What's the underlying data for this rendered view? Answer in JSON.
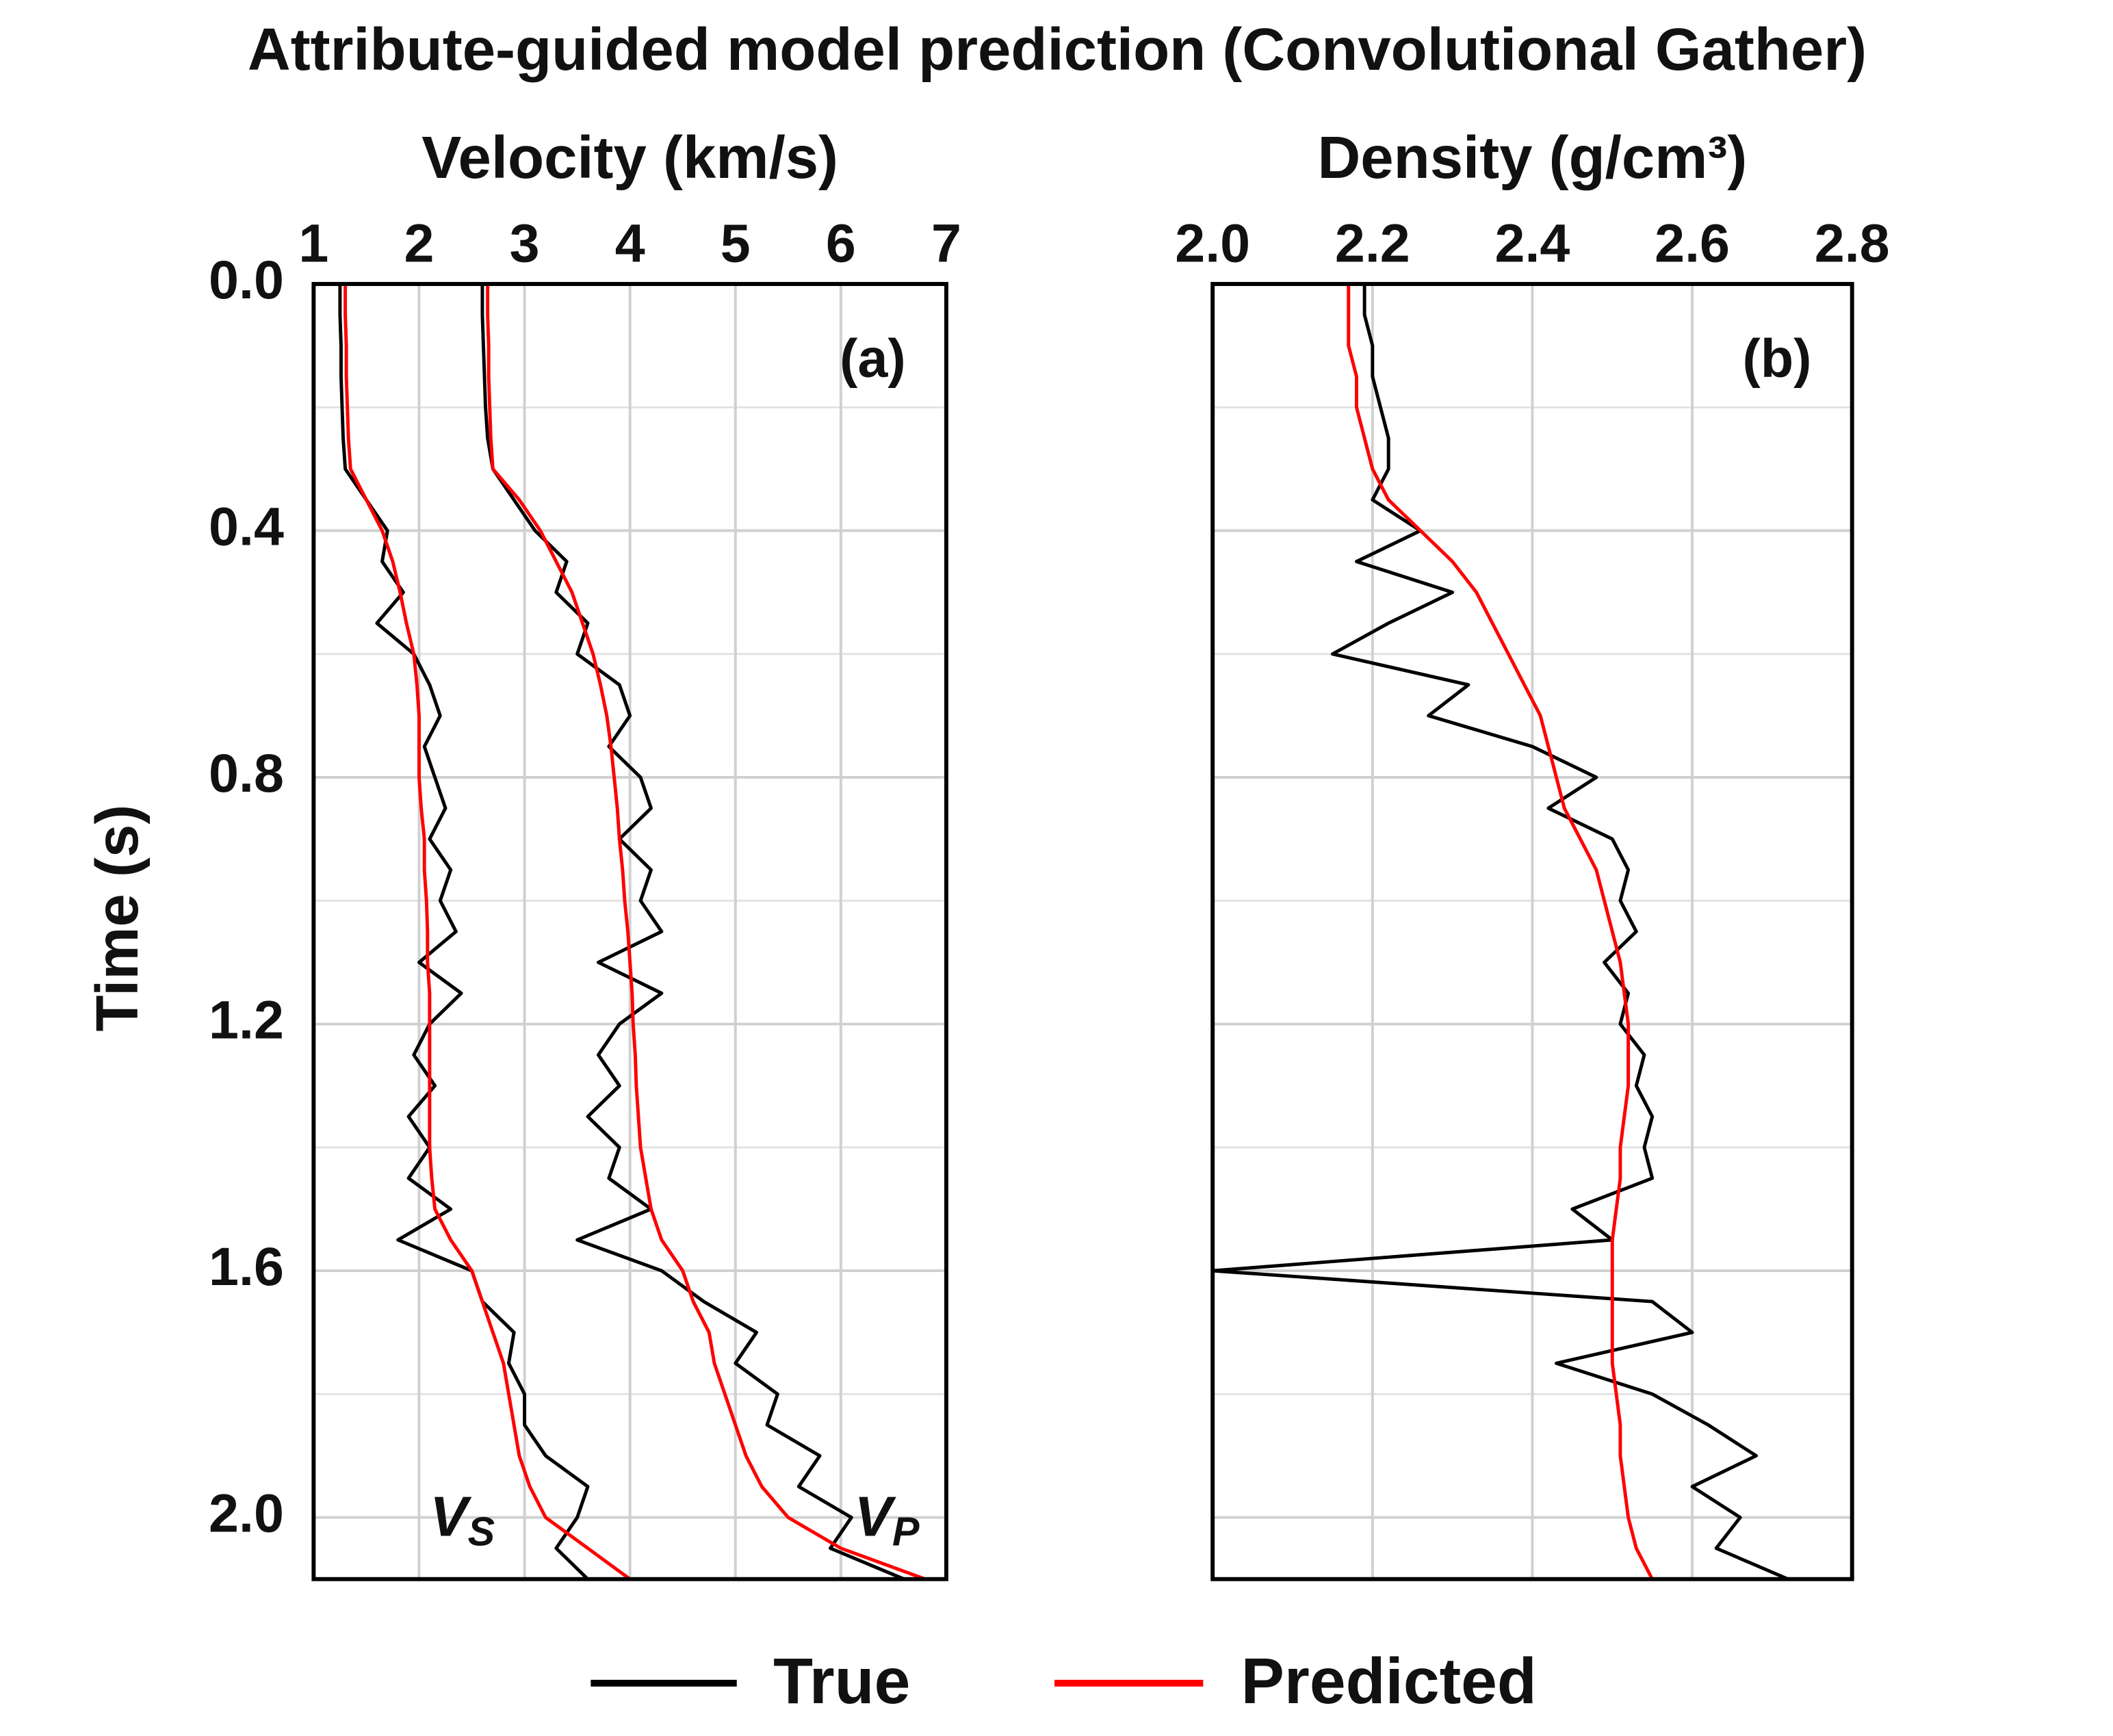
{
  "title": "Attribute-guided model prediction (Convolutional Gather)",
  "chart_data": [
    {
      "type": "line",
      "orientation": "vertical",
      "panel_label": "(a)",
      "xlabel": "Time (s)",
      "ylabel": "Velocity (km/s)",
      "x": [
        0,
        0.05,
        0.1,
        0.15,
        0.2,
        0.25,
        0.3,
        0.35,
        0.4,
        0.45,
        0.5,
        0.55,
        0.6,
        0.65,
        0.7,
        0.75,
        0.8,
        0.85,
        0.9,
        0.95,
        1.0,
        1.05,
        1.1,
        1.15,
        1.2,
        1.25,
        1.3,
        1.35,
        1.4,
        1.45,
        1.5,
        1.55,
        1.6,
        1.65,
        1.7,
        1.75,
        1.8,
        1.85,
        1.9,
        1.95,
        2.0,
        2.05,
        2.1
      ],
      "xlim": [
        0,
        2.1
      ],
      "xticks": [
        {
          "value": 0,
          "label": "0.0"
        },
        0.4,
        0.8,
        1.2,
        1.6,
        {
          "value": 2,
          "label": "2.0"
        }
      ],
      "xminor": [
        0.2,
        0.6,
        1.0,
        1.4,
        1.8
      ],
      "show_xtick_labels": true,
      "ylim": [
        1,
        7
      ],
      "yticks": [
        1,
        2,
        3,
        4,
        5,
        6,
        7
      ],
      "grid": true,
      "annotations": [
        {
          "text": "V",
          "sub": "S"
        },
        {
          "text": "V",
          "sub": "P"
        }
      ],
      "series": [
        {
          "name": "True",
          "color": "#000000",
          "values": [
            1.25,
            1.25,
            1.26,
            1.26,
            1.27,
            1.28,
            1.3,
            1.5,
            1.7,
            1.65,
            1.85,
            1.6,
            1.95,
            2.1,
            2.2,
            2.05,
            2.15,
            2.25,
            2.1,
            2.3,
            2.2,
            2.35,
            2.0,
            2.4,
            2.1,
            1.95,
            2.15,
            1.9,
            2.1,
            1.9,
            2.3,
            1.8,
            2.5,
            2.6,
            2.9,
            2.85,
            3.0,
            3.0,
            3.2,
            3.6,
            3.5,
            3.3,
            3.6
          ]
        },
        {
          "name": "Predicted",
          "color": "#ff0000",
          "values": [
            1.3,
            1.3,
            1.31,
            1.31,
            1.32,
            1.33,
            1.35,
            1.5,
            1.65,
            1.75,
            1.82,
            1.88,
            1.95,
            1.98,
            2.0,
            2.0,
            2.0,
            2.02,
            2.05,
            2.05,
            2.07,
            2.08,
            2.08,
            2.1,
            2.1,
            2.1,
            2.1,
            2.1,
            2.1,
            2.12,
            2.15,
            2.3,
            2.5,
            2.6,
            2.7,
            2.8,
            2.85,
            2.9,
            2.95,
            3.05,
            3.2,
            3.6,
            4.0
          ]
        },
        {
          "name": "True",
          "color": "#000000",
          "values": [
            2.6,
            2.6,
            2.61,
            2.62,
            2.63,
            2.65,
            2.7,
            2.9,
            3.1,
            3.4,
            3.3,
            3.6,
            3.5,
            3.9,
            4.0,
            3.8,
            4.1,
            4.2,
            3.9,
            4.2,
            4.1,
            4.3,
            3.7,
            4.3,
            3.9,
            3.7,
            3.9,
            3.6,
            3.9,
            3.8,
            4.2,
            3.5,
            4.3,
            4.7,
            5.2,
            5.0,
            5.4,
            5.3,
            5.8,
            5.6,
            6.1,
            5.9,
            6.6
          ]
        },
        {
          "name": "Predicted",
          "color": "#ff0000",
          "values": [
            2.65,
            2.65,
            2.66,
            2.66,
            2.67,
            2.68,
            2.7,
            2.95,
            3.15,
            3.3,
            3.45,
            3.55,
            3.65,
            3.72,
            3.78,
            3.82,
            3.85,
            3.88,
            3.9,
            3.93,
            3.95,
            3.98,
            4.0,
            4.02,
            4.03,
            4.05,
            4.06,
            4.08,
            4.1,
            4.15,
            4.2,
            4.3,
            4.5,
            4.6,
            4.75,
            4.8,
            4.9,
            5.0,
            5.1,
            5.25,
            5.5,
            6.0,
            6.8
          ]
        }
      ]
    },
    {
      "type": "line",
      "orientation": "vertical",
      "panel_label": "(b)",
      "ylabel": "Density (g/cm³)",
      "x": [
        0,
        0.05,
        0.1,
        0.15,
        0.2,
        0.25,
        0.3,
        0.35,
        0.4,
        0.45,
        0.5,
        0.55,
        0.6,
        0.65,
        0.7,
        0.75,
        0.8,
        0.85,
        0.9,
        0.95,
        1.0,
        1.05,
        1.1,
        1.15,
        1.2,
        1.25,
        1.3,
        1.35,
        1.4,
        1.45,
        1.5,
        1.55,
        1.6,
        1.65,
        1.7,
        1.75,
        1.8,
        1.85,
        1.9,
        1.95,
        2.0,
        2.05,
        2.1
      ],
      "xlim": [
        0,
        2.1
      ],
      "xticks": [
        0,
        0.4,
        0.8,
        1.2,
        1.6,
        2
      ],
      "xminor": [
        0.2,
        0.6,
        1.0,
        1.4,
        1.8
      ],
      "show_xtick_labels": false,
      "ylim": [
        2.0,
        2.8
      ],
      "yticks": [
        {
          "value": 2.0,
          "label": "2.0"
        },
        2.2,
        2.4,
        2.6,
        2.8
      ],
      "grid": true,
      "series": [
        {
          "name": "True",
          "color": "#000000",
          "values": [
            2.19,
            2.19,
            2.2,
            2.2,
            2.21,
            2.22,
            2.22,
            2.2,
            2.26,
            2.18,
            2.3,
            2.22,
            2.15,
            2.32,
            2.27,
            2.4,
            2.48,
            2.42,
            2.5,
            2.52,
            2.51,
            2.53,
            2.49,
            2.52,
            2.51,
            2.54,
            2.53,
            2.55,
            2.54,
            2.55,
            2.45,
            2.5,
            2.0,
            2.55,
            2.6,
            2.43,
            2.55,
            2.62,
            2.68,
            2.6,
            2.66,
            2.63,
            2.72
          ]
        },
        {
          "name": "Predicted",
          "color": "#ff0000",
          "values": [
            2.17,
            2.17,
            2.17,
            2.18,
            2.18,
            2.19,
            2.2,
            2.22,
            2.26,
            2.3,
            2.33,
            2.35,
            2.37,
            2.39,
            2.41,
            2.42,
            2.43,
            2.44,
            2.46,
            2.48,
            2.49,
            2.5,
            2.51,
            2.515,
            2.52,
            2.52,
            2.52,
            2.515,
            2.51,
            2.51,
            2.505,
            2.5,
            2.5,
            2.5,
            2.5,
            2.5,
            2.505,
            2.51,
            2.51,
            2.515,
            2.52,
            2.53,
            2.55
          ]
        }
      ]
    }
  ]
}
